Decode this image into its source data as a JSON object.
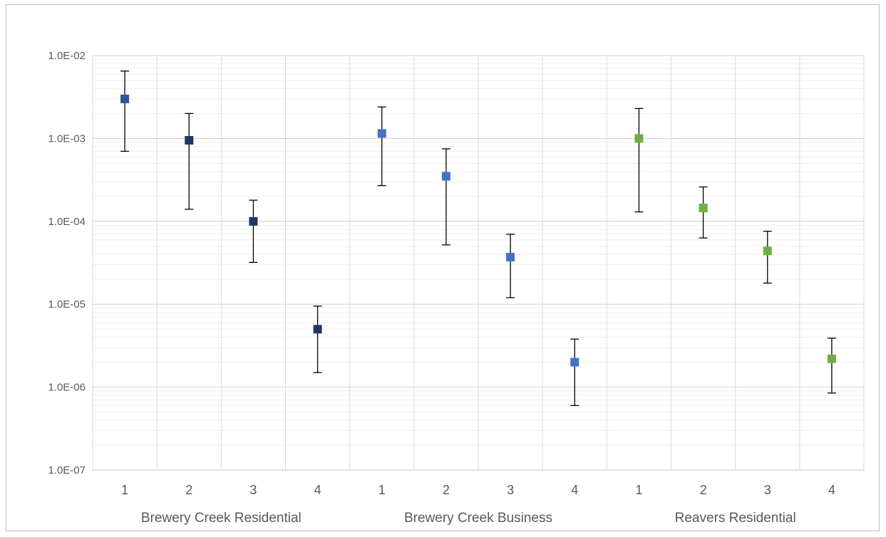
{
  "chart_data": {
    "type": "scatter",
    "title": "",
    "xlabel": "",
    "ylabel": "",
    "yscale": "log",
    "ylim": [
      1e-07,
      0.01
    ],
    "y_tick_labels": [
      "1.0E-07",
      "1.0E-06",
      "1.0E-05",
      "1.0E-04",
      "1.0E-03",
      "1.0E-02"
    ],
    "grid": {
      "major": true,
      "minor": true
    },
    "legend": "none",
    "groups": [
      {
        "label": "Brewery Creek Residential",
        "color": "#2e4a7d",
        "points": [
          {
            "x": "1",
            "y": 0.003,
            "low": 0.0007,
            "high": 0.0065,
            "color": "#305496"
          },
          {
            "x": "2",
            "y": 0.00095,
            "low": 0.00014,
            "high": 0.002,
            "color": "#1f3864"
          },
          {
            "x": "3",
            "y": 0.0001,
            "low": 3.2e-05,
            "high": 0.00018,
            "color": "#1f3864"
          },
          {
            "x": "4",
            "y": 5e-06,
            "low": 1.5e-06,
            "high": 9.5e-06,
            "color": "#1f3864"
          }
        ]
      },
      {
        "label": "Brewery Creek Business",
        "color": "#4472c4",
        "points": [
          {
            "x": "1",
            "y": 0.00115,
            "low": 0.00027,
            "high": 0.0024,
            "color": "#4472c4"
          },
          {
            "x": "2",
            "y": 0.00035,
            "low": 5.2e-05,
            "high": 0.00075,
            "color": "#4472c4"
          },
          {
            "x": "3",
            "y": 3.7e-05,
            "low": 1.2e-05,
            "high": 7e-05,
            "color": "#4472c4"
          },
          {
            "x": "4",
            "y": 2e-06,
            "low": 6e-07,
            "high": 3.8e-06,
            "color": "#4472c4"
          }
        ]
      },
      {
        "label": "Reavers Residential",
        "color": "#70ad47",
        "points": [
          {
            "x": "1",
            "y": 0.001,
            "low": 0.00013,
            "high": 0.0023,
            "color": "#70ad47"
          },
          {
            "x": "2",
            "y": 0.000145,
            "low": 6.3e-05,
            "high": 0.00026,
            "color": "#70ad47"
          },
          {
            "x": "3",
            "y": 4.4e-05,
            "low": 1.8e-05,
            "high": 7.6e-05,
            "color": "#70ad47"
          },
          {
            "x": "4",
            "y": 2.2e-06,
            "low": 8.5e-07,
            "high": 3.9e-06,
            "color": "#70ad47"
          }
        ]
      }
    ]
  }
}
